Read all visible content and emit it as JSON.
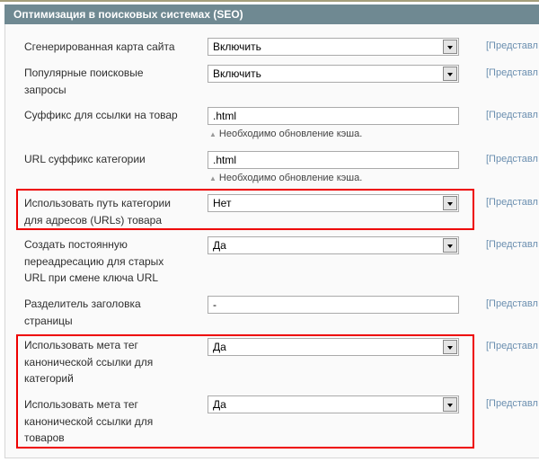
{
  "section_title": "Оптимизация в поисковых системах (SEO)",
  "scope_label": "[Представл",
  "cache_note": "Необходимо обновление кэша.",
  "highlight_color": "#e00000",
  "fields": [
    {
      "label": "Сгенерированная карта сайта",
      "type": "select",
      "value": "Включить"
    },
    {
      "label": "Популярные поисковые запросы",
      "type": "select",
      "value": "Включить"
    },
    {
      "label": "Суффикс для ссылки на товар",
      "type": "input",
      "value": ".html"
    },
    {
      "label": "URL суффикс категории",
      "type": "input",
      "value": ".html"
    },
    {
      "label": "Использовать путь категории для адресов (URLs) товара",
      "type": "select",
      "value": "Нет"
    },
    {
      "label": "Создать постоянную переадресацию для старых URL при смене ключа URL",
      "type": "select",
      "value": "Да"
    },
    {
      "label": "Разделитель заголовка страницы",
      "type": "input",
      "value": "-"
    },
    {
      "label": "Использовать мета тег канонической ссылки для категорий",
      "type": "select",
      "value": "Да"
    },
    {
      "label": "Использовать мета тег канонической ссылки для товаров",
      "type": "select",
      "value": "Да"
    }
  ]
}
